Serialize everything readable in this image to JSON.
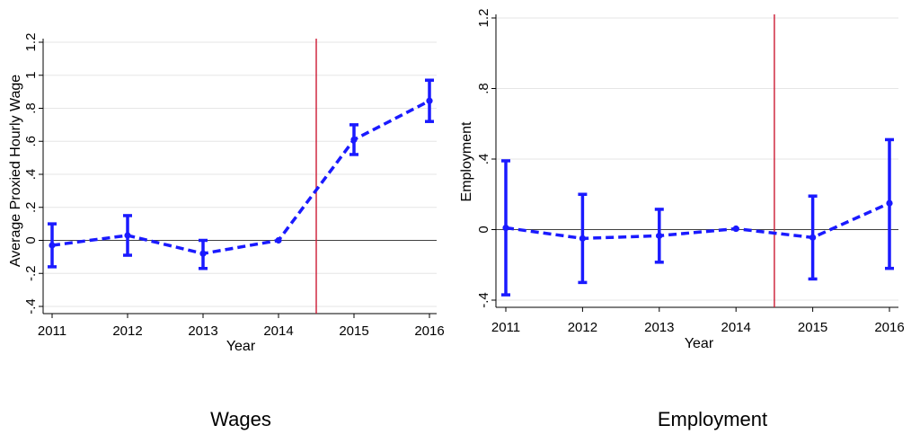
{
  "colors": {
    "series": "#1a1aff",
    "reference": "#cc1a33",
    "grid": "#e6e6e6",
    "zero": "#000000"
  },
  "chart_data": [
    {
      "type": "line",
      "caption": "Wages",
      "xlabel": "Year",
      "ylabel": "Average Proxied Hourly Wage",
      "x": [
        2011,
        2012,
        2013,
        2014,
        2015,
        2016
      ],
      "x_tick_labels": [
        "2011",
        "2012",
        "2013",
        "2014",
        "2015",
        "2016"
      ],
      "xlim": [
        2011,
        2016
      ],
      "ylim": [
        -0.4,
        1.2
      ],
      "y_ticks": [
        -0.4,
        -0.2,
        0,
        0.2,
        0.4,
        0.6,
        0.8,
        1,
        1.2
      ],
      "y_tick_labels": [
        "-.4",
        "-.2",
        "0",
        ".2",
        ".4",
        ".6",
        ".8",
        "1",
        "1.2"
      ],
      "grid": true,
      "reference_line_x": 2014.5,
      "series": [
        {
          "values": [
            -0.03,
            0.03,
            -0.08,
            0.0,
            0.61,
            0.845
          ],
          "ci_low": [
            -0.16,
            -0.09,
            -0.17,
            0.0,
            0.52,
            0.72
          ],
          "ci_high": [
            0.1,
            0.15,
            0.0,
            0.0,
            0.7,
            0.97
          ]
        }
      ]
    },
    {
      "type": "line",
      "caption": "Employment",
      "xlabel": "Year",
      "ylabel": "Employment",
      "x": [
        2011,
        2012,
        2013,
        2014,
        2015,
        2016
      ],
      "x_tick_labels": [
        "2011",
        "2012",
        "2013",
        "2014",
        "2015",
        "2016"
      ],
      "xlim": [
        2011,
        2016
      ],
      "ylim": [
        -0.4,
        1.2
      ],
      "y_ticks": [
        -0.4,
        0,
        0.4,
        0.8,
        1.2
      ],
      "y_tick_labels": [
        "-.4",
        "0",
        ".4",
        ".8",
        "1.2"
      ],
      "grid": true,
      "reference_line_x": 2014.5,
      "series": [
        {
          "values": [
            0.01,
            -0.05,
            -0.035,
            0.005,
            -0.045,
            0.15
          ],
          "ci_low": [
            -0.37,
            -0.3,
            -0.185,
            0.0,
            -0.28,
            -0.22
          ],
          "ci_high": [
            0.39,
            0.2,
            0.115,
            0.0,
            0.19,
            0.51
          ]
        }
      ]
    }
  ]
}
